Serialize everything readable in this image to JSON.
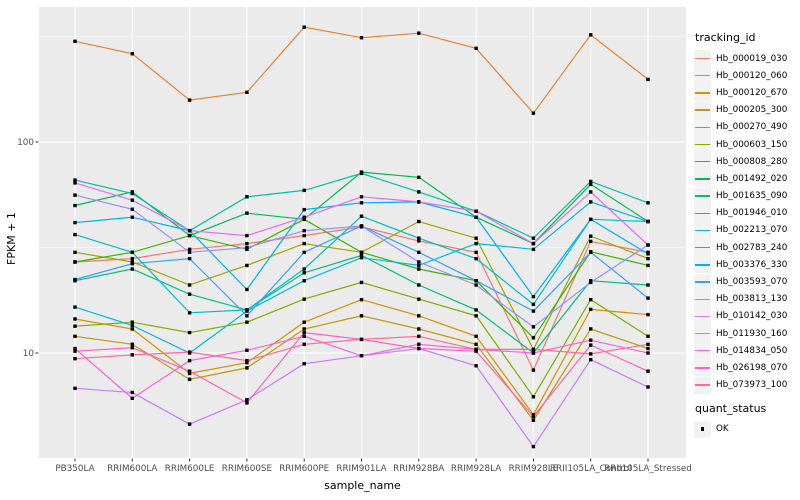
{
  "chart_data": {
    "type": "line",
    "title": "",
    "xlabel": "sample_name",
    "ylabel": "FPKM + 1",
    "y_scale": "log10",
    "ylim": [
      3.2,
      440
    ],
    "y_ticks": [
      10,
      100
    ],
    "grid": "on",
    "panel_bg": "#ebebeb",
    "grid_color": "#ffffff",
    "tick_label_color": "#4d4d4d",
    "legend_position": "right",
    "legend_title": "tracking_id",
    "point_marker": {
      "shape": "square",
      "color": "#000000"
    },
    "legend2": {
      "title": "quant_status",
      "items": [
        "OK"
      ]
    },
    "categories": [
      "PB350LA",
      "RRIM600LA",
      "RRIM600LE",
      "RRIM600SE",
      "RRIM600PE",
      "RRIM901LA",
      "RRIM928BA",
      "RRIM928LA",
      "RRIM928LE",
      "RRII105LA_Control",
      "RRII105LA_Stressed"
    ],
    "series": [
      {
        "name": "Hb_000019_030",
        "color": "#F8766D",
        "values": [
          27,
          28,
          31,
          33,
          36,
          39.6,
          34,
          30,
          8.3,
          33.8,
          30
        ]
      },
      {
        "name": "Hb_000120_060",
        "color": "#EA8331",
        "values": [
          300,
          262,
          158,
          172,
          350,
          312,
          328,
          278,
          137,
          322,
          198
        ]
      },
      {
        "name": "Hb_000120_670",
        "color": "#D89000",
        "values": [
          14.5,
          13,
          8,
          9,
          14,
          17.9,
          15,
          12,
          5.1,
          16.1,
          15.2
        ]
      },
      {
        "name": "Hb_000205_300",
        "color": "#C09B00",
        "values": [
          12,
          11,
          7.5,
          8.5,
          13,
          15,
          13,
          11,
          4.8,
          13,
          10.5
        ]
      },
      {
        "name": "Hb_000270_490",
        "color": "#A3A500",
        "values": [
          30,
          27,
          21,
          26,
          33,
          30,
          42,
          35,
          10.4,
          35.8,
          28
        ]
      },
      {
        "name": "Hb_000603_150",
        "color": "#7CAE00",
        "values": [
          13.4,
          14,
          12.5,
          14,
          18,
          21.6,
          18,
          15,
          6.2,
          17.9,
          12
        ]
      },
      {
        "name": "Hb_000808_280",
        "color": "#39B600",
        "values": [
          27,
          30,
          36,
          31,
          43,
          30,
          25,
          22,
          11.8,
          30.2,
          26
        ]
      },
      {
        "name": "Hb_001492_020",
        "color": "#00BB4E",
        "values": [
          50,
          58,
          36,
          46,
          43,
          72,
          68,
          44,
          33,
          63,
          42
        ]
      },
      {
        "name": "Hb_001635_090",
        "color": "#00BF7D",
        "values": [
          22,
          25,
          19,
          16,
          24,
          29,
          21,
          16,
          10,
          22,
          21
        ]
      },
      {
        "name": "Hb_001946_010",
        "color": "#00C1A3",
        "values": [
          66,
          57,
          38,
          55,
          59,
          71,
          58,
          47,
          35,
          65,
          51.5
        ]
      },
      {
        "name": "Hb_002213_070",
        "color": "#00BFC4",
        "values": [
          36.4,
          30,
          15.5,
          16,
          25,
          44.5,
          35,
          28,
          17,
          43,
          42
        ]
      },
      {
        "name": "Hb_002783_240",
        "color": "#00BAE0",
        "values": [
          16.5,
          13.5,
          10,
          15.8,
          22,
          28.3,
          26,
          33,
          31,
          52,
          42
        ]
      },
      {
        "name": "Hb_003376_330",
        "color": "#00B0F6",
        "values": [
          41.5,
          44,
          38,
          20,
          47.8,
          51.5,
          52,
          44,
          18.5,
          43,
          29.5
        ]
      },
      {
        "name": "Hb_003593_070",
        "color": "#35A2FF",
        "values": [
          22.3,
          26.5,
          28,
          15,
          30,
          40,
          30,
          22,
          15.8,
          30,
          18.2
        ]
      },
      {
        "name": "Hb_003813_130",
        "color": "#9590FF",
        "values": [
          56,
          48,
          30,
          31.6,
          38,
          40,
          27,
          21,
          13.3,
          21.6,
          32.5
        ]
      },
      {
        "name": "Hb_010142_030",
        "color": "#C77CFF",
        "values": [
          6.8,
          6.5,
          4.6,
          6,
          8.9,
          9.7,
          10.5,
          8.7,
          3.6,
          9.3,
          6.9
        ]
      },
      {
        "name": "Hb_011930_160",
        "color": "#E76BF3",
        "values": [
          64,
          53,
          38,
          36,
          44,
          55,
          52,
          47,
          33,
          58,
          32.5
        ]
      },
      {
        "name": "Hb_014834_050",
        "color": "#FA62DB",
        "values": [
          10.5,
          6.1,
          9.2,
          10.3,
          12,
          9.7,
          11,
          10.4,
          10,
          11.5,
          10
        ]
      },
      {
        "name": "Hb_026198_070",
        "color": "#FF62BC",
        "values": [
          10.2,
          10.6,
          8.2,
          5.8,
          12.5,
          11.6,
          10.5,
          10.2,
          5,
          10.9,
          8.2
        ]
      },
      {
        "name": "Hb_073973_100",
        "color": "#FF6A98",
        "values": [
          9.4,
          9.8,
          10.1,
          9.2,
          11,
          11.6,
          12,
          10.4,
          10.4,
          9.9,
          11
        ]
      }
    ]
  }
}
